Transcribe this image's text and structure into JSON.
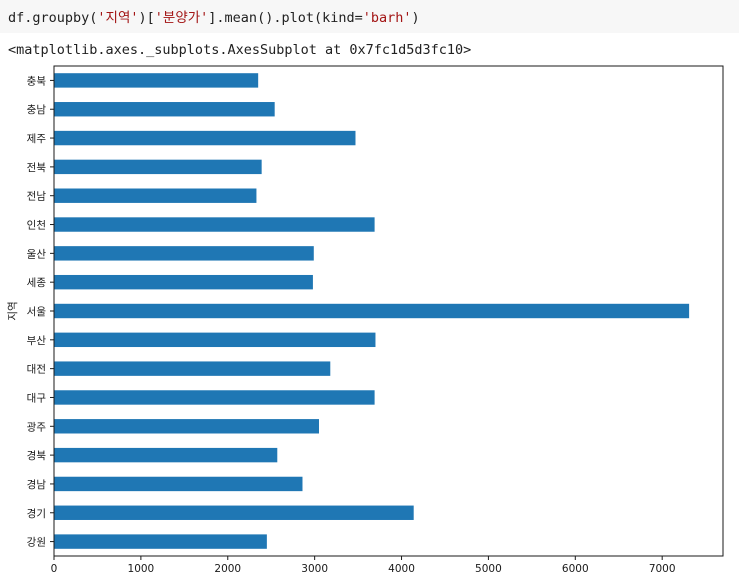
{
  "code": {
    "prefix": "df.groupby(",
    "arg1": "'지역'",
    "mid": ")[",
    "arg2": "'분양가'",
    "mid2": "].mean().plot(kind=",
    "arg3": "'barh'",
    "suffix": ")"
  },
  "output_text": "<matplotlib.axes._subplots.AxesSubplot at 0x7fc1d5d3fc10>",
  "colors": {
    "bar": "#1f77b4",
    "axis": "#1a1a1a"
  },
  "chart_data": {
    "type": "bar",
    "orientation": "horizontal",
    "ylabel": "지역",
    "xlabel": "",
    "xlim": [
      0,
      7700
    ],
    "xticks": [
      0,
      1000,
      2000,
      3000,
      4000,
      5000,
      6000,
      7000
    ],
    "categories": [
      "충북",
      "충남",
      "제주",
      "전북",
      "전남",
      "인천",
      "울산",
      "세종",
      "서울",
      "부산",
      "대전",
      "대구",
      "광주",
      "경북",
      "경남",
      "경기",
      "강원"
    ],
    "values": [
      2350,
      2540,
      3470,
      2390,
      2330,
      3690,
      2990,
      2980,
      7310,
      3700,
      3180,
      3690,
      3050,
      2570,
      2860,
      4140,
      2450
    ],
    "grid": false
  }
}
